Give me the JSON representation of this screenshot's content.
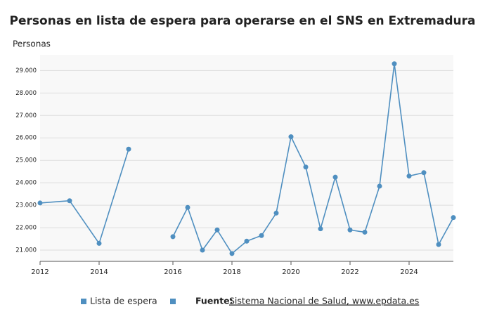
{
  "chart_data": {
    "type": "line",
    "title": "Personas en lista de espera para operarse en el SNS en Extremadura",
    "y_label": "Personas",
    "x": [
      2012,
      2013,
      2014,
      2015,
      2015.5,
      2016.5,
      2017,
      2017.5,
      2018,
      2018.5,
      2019,
      2019.5,
      2020,
      2020.5,
      2021,
      2021.5,
      2022,
      2022.5,
      2023,
      2023.5,
      2024,
      2024.5,
      2025,
      2025.5,
      2026
    ],
    "series": [
      {
        "name": "Lista de espera",
        "color": "#4f8fc0",
        "values": [
          23100,
          23200,
          21300,
          25500,
          null,
          21600,
          22900,
          21000,
          21900,
          20850,
          21400,
          21650,
          22650,
          26050,
          24700,
          21950,
          24250,
          21900,
          21800,
          23850,
          29300,
          24300,
          24450,
          21250,
          22450
        ]
      }
    ],
    "xlim": [
      2012,
      2026
    ],
    "xticks": [
      2012,
      2014,
      {
        "value": 2016.5,
        "label": "2016"
      },
      {
        "value": 2018.5,
        "label": "2018"
      },
      {
        "value": 2020.5,
        "label": "2020"
      },
      {
        "value": 2022.5,
        "label": "2022"
      },
      {
        "value": 2024.5,
        "label": "2024"
      }
    ],
    "ylim": [
      20500,
      29700
    ],
    "yticks": [
      {
        "value": 21000,
        "label": "21.000"
      },
      {
        "value": 22000,
        "label": "22.000"
      },
      {
        "value": 23000,
        "label": "23.000"
      },
      {
        "value": 24000,
        "label": "24.000"
      },
      {
        "value": 25000,
        "label": "25.000"
      },
      {
        "value": 26000,
        "label": "26.000"
      },
      {
        "value": 27000,
        "label": "27.000"
      },
      {
        "value": 28000,
        "label": "28.000"
      },
      {
        "value": 29000,
        "label": "29.000"
      }
    ],
    "grid": true,
    "source_label": "Fuente:",
    "source": "Sistema Nacional de Salud, www.epdata.es"
  }
}
